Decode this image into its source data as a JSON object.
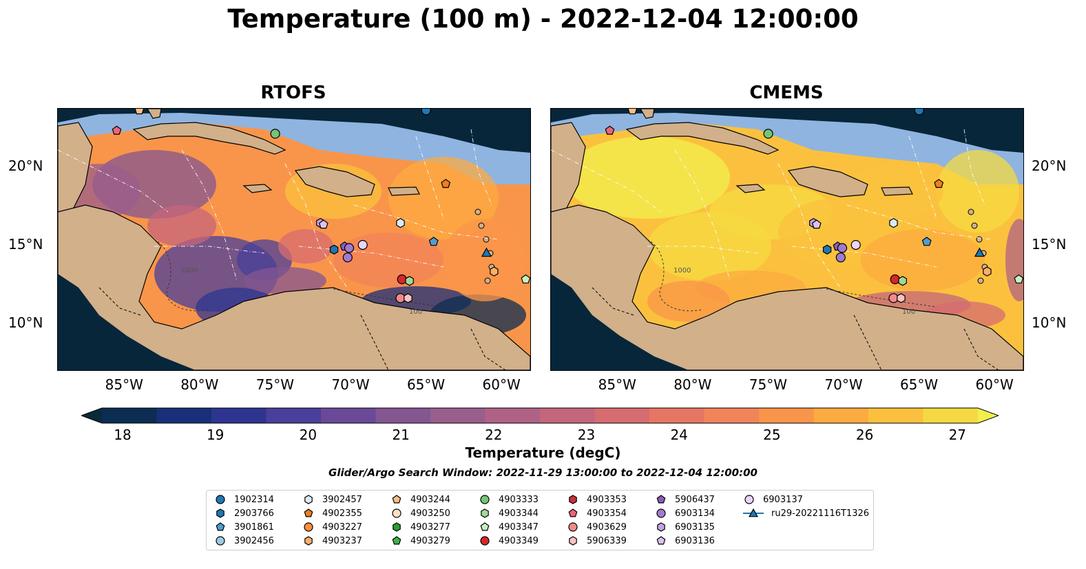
{
  "title": "Temperature (100 m) - 2022-12-04 12:00:00",
  "panels": [
    {
      "title": "RTOFS",
      "theme": "rtofs"
    },
    {
      "title": "CMEMS",
      "theme": "cmems"
    }
  ],
  "axes": {
    "lon_ticks": [
      "85°W",
      "80°W",
      "75°W",
      "70°W",
      "65°W",
      "60°W"
    ],
    "lat_ticks": [
      "20°N",
      "15°N",
      "10°N"
    ],
    "lon_range": [
      -89.5,
      -58.2
    ],
    "lat_range": [
      7.0,
      23.7
    ]
  },
  "contour_labels": [
    "1000",
    "100"
  ],
  "colorbar": {
    "ticks": [
      "18",
      "19",
      "20",
      "21",
      "22",
      "23",
      "24",
      "25",
      "26",
      "27"
    ],
    "label": "Temperature (degC)",
    "colors": [
      "#082a3a",
      "#0c2d52",
      "#192f7a",
      "#2e3590",
      "#4a3f9a",
      "#6a4a98",
      "#845692",
      "#9a5e8c",
      "#b06285",
      "#c4667c",
      "#d66c70",
      "#e67664",
      "#f18458",
      "#f9954a",
      "#fcab40",
      "#fbc13e",
      "#f6d942",
      "#f1ee4d"
    ]
  },
  "search_window": "Glider/Argo Search Window: 2022-11-29 13:00:00 to 2022-12-04 12:00:00",
  "legend": [
    {
      "label": "1902314",
      "marker": "circle",
      "color": "#1f77b4"
    },
    {
      "label": "2903766",
      "marker": "hexagon",
      "color": "#1f77b4"
    },
    {
      "label": "3901861",
      "marker": "pentagon",
      "color": "#4e9fce"
    },
    {
      "label": "3902456",
      "marker": "circle",
      "color": "#9ecae1"
    },
    {
      "label": "3902457",
      "marker": "hexagon",
      "color": "#dbeaf7"
    },
    {
      "label": "4902355",
      "marker": "pentagon",
      "color": "#f07e20"
    },
    {
      "label": "4903227",
      "marker": "circle",
      "color": "#fd8d3c"
    },
    {
      "label": "4903237",
      "marker": "hexagon",
      "color": "#fdae6b"
    },
    {
      "label": "4903244",
      "marker": "pentagon",
      "color": "#fdbe85"
    },
    {
      "label": "4903250",
      "marker": "circle",
      "color": "#fee0c4"
    },
    {
      "label": "4903277",
      "marker": "hexagon",
      "color": "#2ca02c"
    },
    {
      "label": "4903279",
      "marker": "pentagon",
      "color": "#3cb44b"
    },
    {
      "label": "4903333",
      "marker": "circle",
      "color": "#74c476"
    },
    {
      "label": "4903344",
      "marker": "hexagon",
      "color": "#a1d99b"
    },
    {
      "label": "4903347",
      "marker": "pentagon",
      "color": "#c7f0c0"
    },
    {
      "label": "4903349",
      "marker": "circle",
      "color": "#d62728"
    },
    {
      "label": "4903353",
      "marker": "hexagon",
      "color": "#c9303c"
    },
    {
      "label": "4903354",
      "marker": "pentagon",
      "color": "#e9677a"
    },
    {
      "label": "4903629",
      "marker": "circle",
      "color": "#f08a8a"
    },
    {
      "label": "5906339",
      "marker": "hexagon",
      "color": "#fbc3c3"
    },
    {
      "label": "5906437",
      "marker": "pentagon",
      "color": "#8a5cb8"
    },
    {
      "label": "6903134",
      "marker": "circle",
      "color": "#a07ad0"
    },
    {
      "label": "6903135",
      "marker": "hexagon",
      "color": "#c3a4e0"
    },
    {
      "label": "6903136",
      "marker": "pentagon",
      "color": "#dcc2ee"
    },
    {
      "label": "6903137",
      "marker": "circle",
      "color": "#ecd4f7"
    },
    {
      "label": "ru29-20221116T1326",
      "marker": "triangle-line",
      "color": "#1f77b4"
    }
  ],
  "markers": [
    {
      "label": "1902314",
      "lon": -65.1,
      "lat": 23.6
    },
    {
      "label": "4903244",
      "lon": -84.1,
      "lat": 23.6
    },
    {
      "label": "4903354",
      "lon": -85.6,
      "lat": 22.3
    },
    {
      "label": "4903333",
      "lon": -75.1,
      "lat": 22.1
    },
    {
      "label": "4902355",
      "lon": -63.8,
      "lat": 18.9
    },
    {
      "label": "6903135",
      "lon": -72.1,
      "lat": 16.4
    },
    {
      "label": "6903136",
      "lon": -71.9,
      "lat": 16.3
    },
    {
      "label": "3902457",
      "lon": -66.8,
      "lat": 16.4
    },
    {
      "label": "3901861",
      "lon": -64.6,
      "lat": 15.2
    },
    {
      "label": "6903137",
      "lon": -69.3,
      "lat": 15.0
    },
    {
      "label": "5906437",
      "lon": -70.5,
      "lat": 14.9
    },
    {
      "label": "6903134",
      "lon": -70.2,
      "lat": 14.8
    },
    {
      "label": "2903766",
      "lon": -71.2,
      "lat": 14.7
    },
    {
      "label": "6903134",
      "lon": -70.3,
      "lat": 14.2
    },
    {
      "label": "ru29-20221116T1326",
      "lon": -61.1,
      "lat": 14.5
    },
    {
      "label": "4903237",
      "lon": -60.6,
      "lat": 13.3
    },
    {
      "label": "4903347",
      "lon": -58.5,
      "lat": 12.8
    },
    {
      "label": "4903349",
      "lon": -66.7,
      "lat": 12.8
    },
    {
      "label": "4903344",
      "lon": -66.2,
      "lat": 12.7
    },
    {
      "label": "4903629",
      "lon": -66.8,
      "lat": 11.6
    },
    {
      "label": "5906339",
      "lon": -66.3,
      "lat": 11.6
    }
  ]
}
